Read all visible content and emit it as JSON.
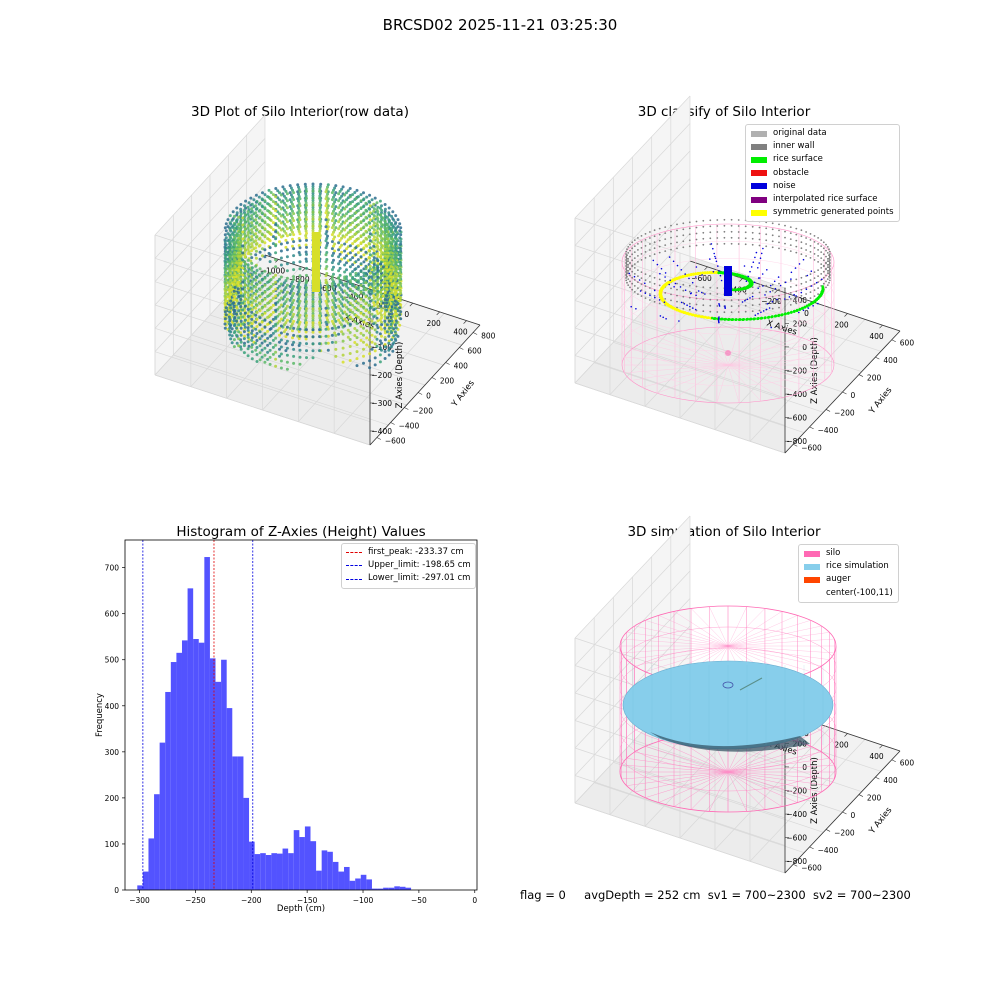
{
  "suptitle": "BRCSD02 2025-11-21 03:25:30",
  "panels": {
    "raw": {
      "title": "3D Plot of Silo Interior(row data)",
      "xlabel": "X Axies",
      "ylabel": "Y Axies",
      "zlabel": "Z Axies (Depth)",
      "xticks": [
        "−1000",
        "−800",
        "−600",
        "−400",
        "−200",
        "0",
        "200",
        "400"
      ],
      "yticks": [
        "800",
        "600",
        "400",
        "200",
        "0",
        "−200",
        "−400",
        "−600"
      ],
      "zticks": [
        "0",
        "−100",
        "−200",
        "−300",
        "−400"
      ]
    },
    "classify": {
      "title": "3D classify of Silo Interior",
      "xlabel": "X Axies",
      "ylabel": "Y Axies",
      "zlabel": "Z Axies (Depth)",
      "xticks": [
        "−600",
        "−400",
        "−200",
        "0",
        "200",
        "400"
      ],
      "yticks": [
        "600",
        "400",
        "200",
        "0",
        "−200",
        "−400",
        "−600"
      ],
      "zticks": [
        "400",
        "200",
        "0",
        "−200",
        "−400",
        "−600",
        "−800"
      ],
      "legend": [
        {
          "label": "original data",
          "color": "#b0b0b0"
        },
        {
          "label": "inner wall",
          "color": "#808080"
        },
        {
          "label": "rice surface",
          "color": "#00ee00"
        },
        {
          "label": "obstacle",
          "color": "#ee1111"
        },
        {
          "label": "noise",
          "color": "#0000dd"
        },
        {
          "label": "interpolated rice surface",
          "color": "#800080"
        },
        {
          "label": "symmetric generated points",
          "color": "#ffff00"
        }
      ]
    },
    "simulation": {
      "title": "3D simulation of Silo Interior",
      "xlabel": "X Axies",
      "ylabel": "Y Axies",
      "zlabel": "Z Axies (Depth)",
      "xticks": [
        "−600",
        "−400",
        "−200",
        "0",
        "200",
        "400"
      ],
      "yticks": [
        "600",
        "400",
        "200",
        "0",
        "−200",
        "−400",
        "−600"
      ],
      "zticks": [
        "400",
        "200",
        "0",
        "−200",
        "−400",
        "−600",
        "−800"
      ],
      "legend": [
        {
          "label": "silo",
          "color": "#ff69b4"
        },
        {
          "label": "rice simulation",
          "color": "#87ceeb"
        },
        {
          "label": "auger",
          "color": "#ff4500"
        },
        {
          "label": "center(-100,11)",
          "color": ""
        }
      ]
    }
  },
  "status": {
    "flag": "flag = 0",
    "avg": "avgDepth = 252 cm",
    "sv1": "sv1 = 700~2300",
    "sv2": "sv2 = 700~2300"
  },
  "colors": {
    "hist_bar": "#4a4aff",
    "peak_line": "#e00000",
    "limit_line": "#0000e0"
  },
  "chart_data": [
    {
      "type": "bar",
      "title": "Histogram of Z-Axies (Height) Values",
      "xlabel": "Depth (cm)",
      "ylabel": "Frequency",
      "xlim": [
        -313,
        2
      ],
      "ylim": [
        0,
        760
      ],
      "xticks": [
        -300,
        -250,
        -200,
        -150,
        -100,
        -50,
        0
      ],
      "xtick_labels": [
        "−300",
        "−250",
        "−200",
        "−150",
        "−100",
        "−50",
        "0"
      ],
      "yticks": [
        0,
        100,
        200,
        300,
        400,
        500,
        600,
        700
      ],
      "bin_edges": [
        -302,
        -297,
        -292,
        -287,
        -282,
        -277,
        -272,
        -267,
        -262,
        -257,
        -252,
        -247,
        -242,
        -237,
        -232,
        -227,
        -222,
        -217,
        -212,
        -207,
        -202,
        -197,
        -192,
        -187,
        -182,
        -177,
        -172,
        -167,
        -162,
        -157,
        -152,
        -147,
        -142,
        -137,
        -132,
        -127,
        -122,
        -117,
        -112,
        -107,
        -102,
        -97,
        -92,
        -87,
        -82,
        -77,
        -72,
        -67,
        -62,
        -57,
        -52,
        -47,
        -42,
        -37,
        -32,
        -27,
        -22,
        -17,
        -12
      ],
      "values": [
        10,
        40,
        112,
        208,
        320,
        430,
        495,
        515,
        542,
        655,
        545,
        537,
        723,
        503,
        452,
        500,
        395,
        290,
        290,
        200,
        105,
        78,
        80,
        76,
        80,
        79,
        90,
        80,
        130,
        115,
        138,
        106,
        42,
        86,
        83,
        61,
        40,
        50,
        20,
        25,
        33,
        23,
        3,
        3,
        5,
        5,
        8,
        7,
        5,
        0,
        0,
        0,
        0,
        0,
        0,
        0,
        0,
        0
      ],
      "vlines": [
        {
          "label": "first_peak: -233.37 cm",
          "x": -233.37,
          "color": "#e00000"
        },
        {
          "label": "Upper_limit: -198.65 cm",
          "x": -198.65,
          "color": "#0000e0"
        },
        {
          "label": "Lower_limit: -297.01 cm",
          "x": -297.01,
          "color": "#0000e0"
        }
      ]
    }
  ]
}
